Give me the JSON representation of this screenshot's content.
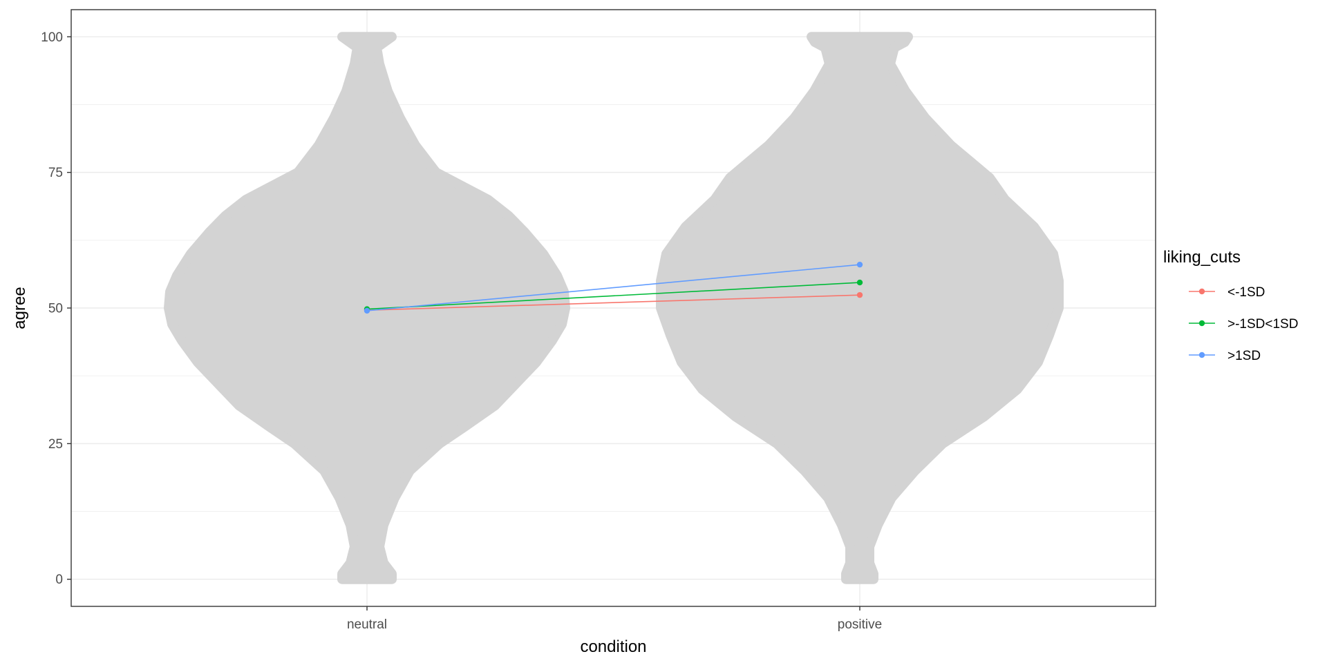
{
  "chart_data": {
    "type": "line",
    "title": "",
    "xlabel": "condition",
    "ylabel": "agree",
    "categories": [
      "neutral",
      "positive"
    ],
    "ylim": [
      -5,
      105
    ],
    "yticks": [
      0,
      25,
      50,
      75,
      100
    ],
    "grid": true,
    "legend": {
      "title": "liking_cuts",
      "placement": "right"
    },
    "series": [
      {
        "name": "<-1SD",
        "values": [
          49.6,
          52.4
        ],
        "color": "#F8766D"
      },
      {
        "name": ">-1SD<1SD",
        "values": [
          49.8,
          54.7
        ],
        "color": "#00BA38"
      },
      {
        "name": ">1SD",
        "values": [
          49.5,
          58.0
        ],
        "color": "#619CFF"
      }
    ],
    "background_distribution": {
      "type": "beeswarm",
      "color": "#d3d3d3",
      "range": [
        0,
        100
      ]
    }
  }
}
